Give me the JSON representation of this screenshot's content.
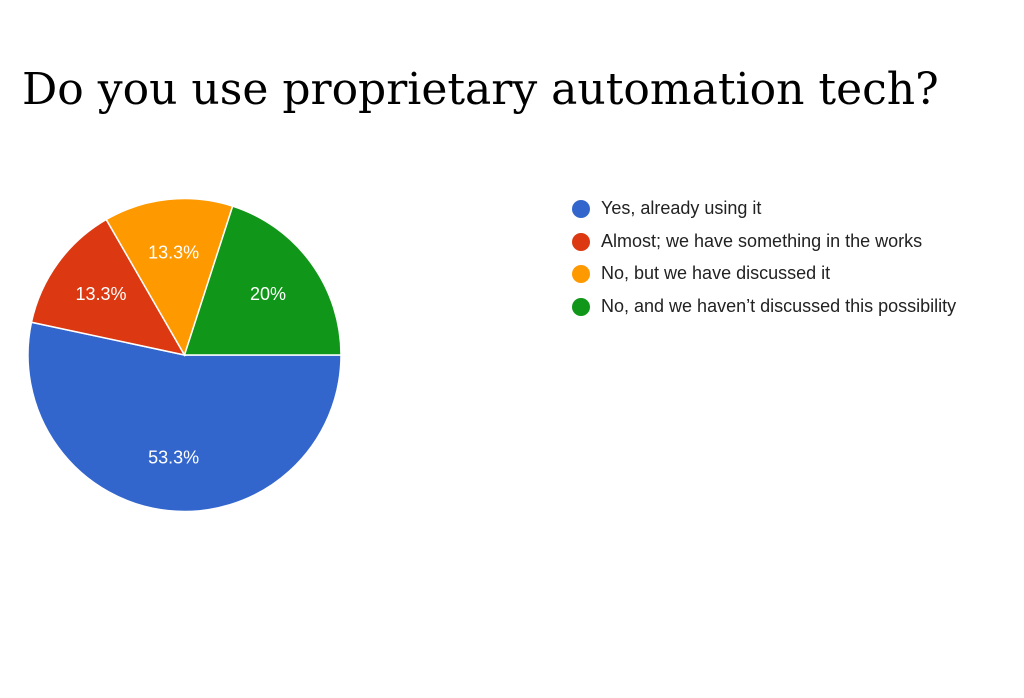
{
  "chart_data": {
    "type": "pie",
    "title": "Do you use proprietary automation tech?",
    "slices": [
      {
        "label": "Yes, already using it",
        "value": 53.3,
        "display": "53.3%",
        "color": "#3366cc"
      },
      {
        "label": "Almost; we have something in the works",
        "value": 13.3,
        "display": "13.3%",
        "color": "#dc3912"
      },
      {
        "label": "No, but we have discussed it",
        "value": 13.3,
        "display": "13.3%",
        "color": "#ff9900"
      },
      {
        "label": "No, and we haven’t discussed this possibility",
        "value": 20,
        "display": "20%",
        "color": "#109618"
      }
    ],
    "legend_position": "right"
  }
}
